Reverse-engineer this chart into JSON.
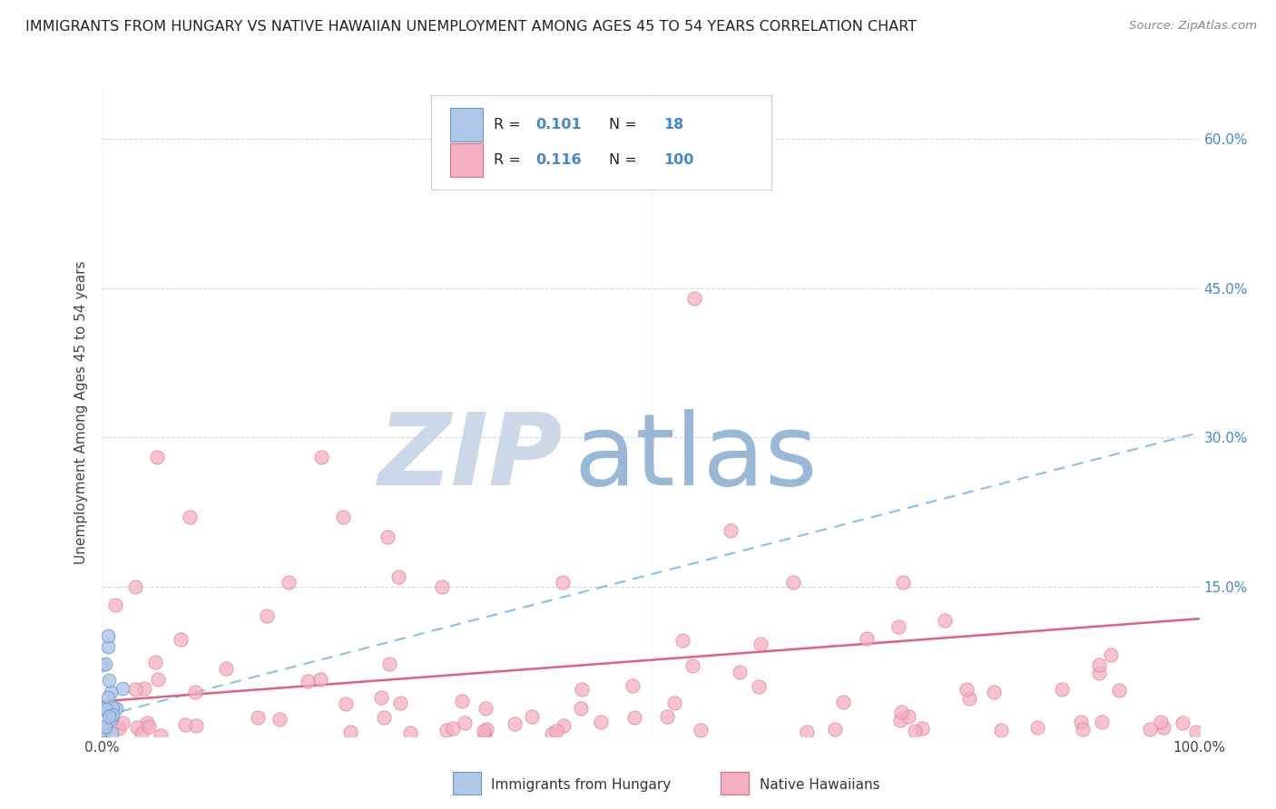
{
  "title": "IMMIGRANTS FROM HUNGARY VS NATIVE HAWAIIAN UNEMPLOYMENT AMONG AGES 45 TO 54 YEARS CORRELATION CHART",
  "source": "Source: ZipAtlas.com",
  "ylabel": "Unemployment Among Ages 45 to 54 years",
  "xlim": [
    0.0,
    1.0
  ],
  "ylim": [
    0.0,
    0.65
  ],
  "yticks": [
    0.0,
    0.15,
    0.3,
    0.45,
    0.6
  ],
  "right_ytick_labels": [
    "",
    "15.0%",
    "30.0%",
    "45.0%",
    "60.0%"
  ],
  "xtick_labels": [
    "0.0%",
    "100.0%"
  ],
  "blue_fill": "#aec6e8",
  "blue_edge": "#6699cc",
  "pink_fill": "#f4afc0",
  "pink_edge": "#e07090",
  "blue_trend_color": "#88bfe8",
  "pink_trend_color": "#e06080",
  "grid_color": "#d0d8e0",
  "background": "#ffffff",
  "watermark_zip_color": "#ccd8e8",
  "watermark_atlas_color": "#99b8d8",
  "legend_r1": "R = 0.101",
  "legend_n1": "18",
  "legend_r2": "R = 0.116",
  "legend_n2": "100",
  "right_label_color": "#4488cc",
  "title_color": "#222222",
  "source_color": "#888888",
  "ylabel_color": "#444444"
}
